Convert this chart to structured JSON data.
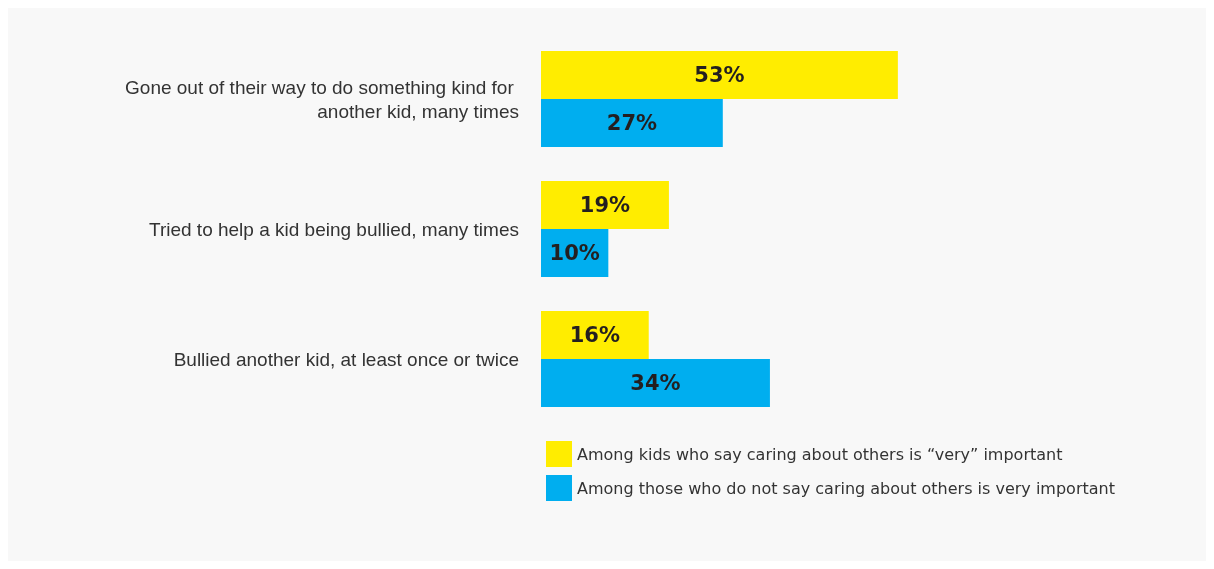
{
  "chart_data": {
    "type": "bar",
    "orientation": "horizontal",
    "categories": [
      "Gone out of their way to do something kind for another kid, many times",
      "Tried to help a kid being bullied, many times",
      "Bullied another kid, at least once or twice"
    ],
    "series": [
      {
        "name": "Among kids who say caring about others is “very” important",
        "color": "#ffed00",
        "values": [
          53,
          19,
          16
        ],
        "value_labels": [
          "53%",
          "19%",
          "16%"
        ]
      },
      {
        "name": "Among those who do not say caring about others is very important",
        "color": "#00aeef",
        "values": [
          27,
          10,
          34
        ],
        "value_labels": [
          "27%",
          "10%",
          "34%"
        ]
      }
    ],
    "legend": "bottom"
  }
}
